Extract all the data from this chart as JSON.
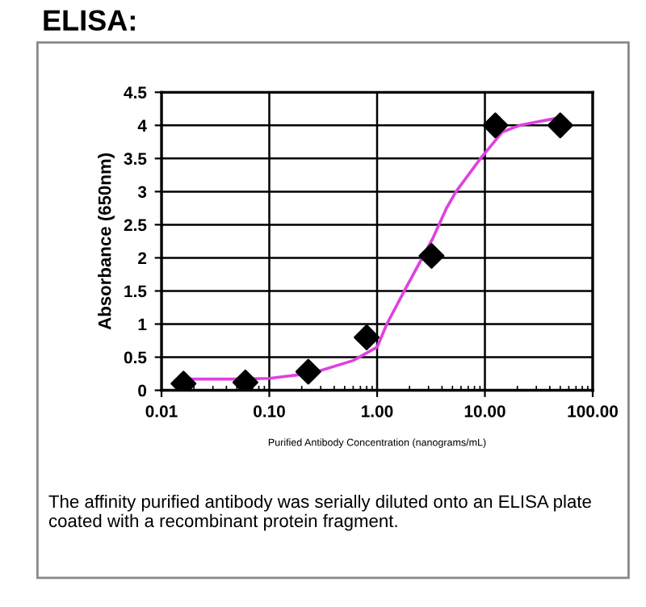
{
  "chart_data": {
    "type": "scatter",
    "title": "ELISA:",
    "xlabel": "Purified Antibody Concentration (nanograms/mL)",
    "ylabel": "Absorbance (650nm)",
    "annotations": [
      "The affinity purified antibody was serially diluted onto an ELISA plate coated with a recombinant protein fragment."
    ],
    "log": "x",
    "xlim": [
      0.01,
      100
    ],
    "xticks": [
      {
        "value": 0.01,
        "label": "0.01"
      },
      {
        "value": 0.1,
        "label": "0.10"
      },
      {
        "value": 1,
        "label": "1.00"
      },
      {
        "value": 10,
        "label": "10.00"
      },
      {
        "value": 100,
        "label": "100.00"
      }
    ],
    "ylim": [
      0,
      4.5
    ],
    "yticks": [
      0,
      0.5,
      1,
      1.5,
      2,
      2.5,
      3,
      3.5,
      4,
      4.5
    ],
    "grid": true,
    "legend": false,
    "series": [
      {
        "color": "#000000",
        "marker": "diamond",
        "x": [
          0.016,
          0.06,
          0.23,
          0.8,
          3.2,
          12.5,
          50
        ],
        "values": [
          0.1,
          0.12,
          0.28,
          0.8,
          2.03,
          4,
          4
        ]
      },
      {
        "type": "line",
        "color": "#e040e0",
        "marker": "none",
        "line_style": "solid",
        "x": [
          0.015,
          0.05,
          0.1,
          0.2,
          0.3,
          0.6,
          1.0,
          1.23,
          1.9,
          3.3,
          4.4,
          5.4,
          9.1,
          14.5,
          21,
          50
        ],
        "values": [
          0.17,
          0.17,
          0.18,
          0.24,
          0.3,
          0.45,
          0.65,
          1.0,
          1.58,
          2.3,
          2.75,
          3.0,
          3.5,
          3.9,
          4.0,
          4.12
        ]
      }
    ]
  }
}
